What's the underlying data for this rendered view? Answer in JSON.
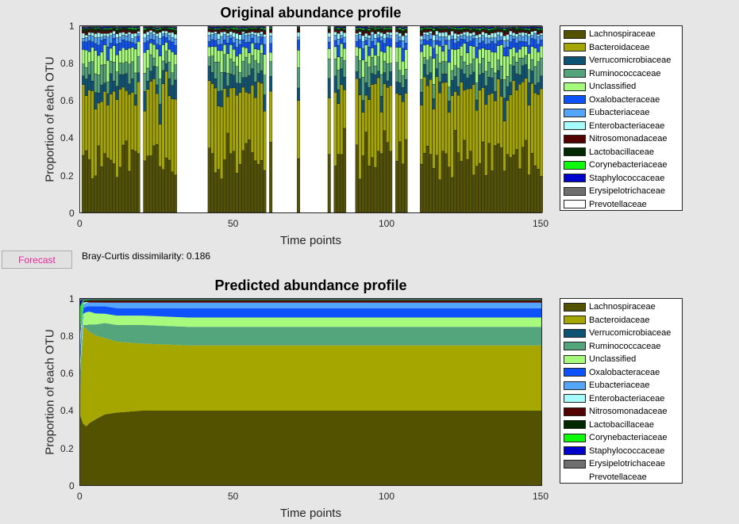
{
  "top_chart": {
    "title": "Original abundance profile",
    "ylabel": "Proportion of each OTU",
    "xlabel": "Time points",
    "xticks": [
      "0",
      "50",
      "100",
      "150"
    ],
    "yticks": [
      "0",
      "0.2",
      "0.4",
      "0.6",
      "0.8",
      "1"
    ]
  },
  "bottom_chart": {
    "title": "Predicted abundance profile",
    "ylabel": "Proportion of each OTU",
    "xlabel": "Time points",
    "xticks": [
      "0",
      "50",
      "100",
      "150"
    ],
    "yticks": [
      "0",
      "0.2",
      "0.4",
      "0.6",
      "0.8",
      "1"
    ]
  },
  "legend": [
    {
      "label": "Lachnospiraceae",
      "color": "#535200"
    },
    {
      "label": "Bacteroidaceae",
      "color": "#a6a600"
    },
    {
      "label": "Verrucomicrobiaceae",
      "color": "#0d5474"
    },
    {
      "label": "Ruminococcaceae",
      "color": "#54a47c"
    },
    {
      "label": "Unclassified",
      "color": "#a6fb7c"
    },
    {
      "label": "Oxalobacteraceae",
      "color": "#0d52fb"
    },
    {
      "label": "Eubacteriaceae",
      "color": "#54a6fb"
    },
    {
      "label": "Enterobacteriaceae",
      "color": "#a6fbfb"
    },
    {
      "label": "Nitrosomonadaceae",
      "color": "#540000"
    },
    {
      "label": "Lactobacillaceae",
      "color": "#002900"
    },
    {
      "label": "Corynebacteriaceae",
      "color": "#0cfb0c"
    },
    {
      "label": "Staphylococcaceae",
      "color": "#0000cc"
    },
    {
      "label": "Erysipelotrichaceae",
      "color": "#6e6e6e"
    },
    {
      "label": "Prevotellaceae",
      "color": "#ffffff"
    }
  ],
  "controls": {
    "forecast_label": "Forecast",
    "dissimilarity_text": "Bray-Curtis dissimilarity: 0.186"
  },
  "chart_data": [
    {
      "type": "bar",
      "stacked": true,
      "title": "Original abundance profile",
      "xlabel": "Time points",
      "ylabel": "Proportion of each OTU",
      "xlim": [
        0,
        150
      ],
      "ylim": [
        0,
        1
      ],
      "present_ranges": [
        [
          1,
          19
        ],
        [
          21,
          27
        ],
        [
          27,
          31
        ],
        [
          31,
          31
        ],
        [
          42,
          54
        ],
        [
          54,
          60
        ],
        [
          60,
          60
        ],
        [
          62,
          62
        ],
        [
          71,
          71
        ],
        [
          81,
          81
        ],
        [
          83,
          86
        ],
        [
          90,
          101
        ],
        [
          103,
          106
        ],
        [
          111,
          150
        ]
      ],
      "series_mean": [
        {
          "name": "Lachnospiraceae",
          "value": 0.3
        },
        {
          "name": "Bacteroidaceae",
          "value": 0.35
        },
        {
          "name": "Verrucomicrobiaceae",
          "value": 0.07
        },
        {
          "name": "Ruminococcaceae",
          "value": 0.08
        },
        {
          "name": "Unclassified",
          "value": 0.08
        },
        {
          "name": "Oxalobacteraceae",
          "value": 0.04
        },
        {
          "name": "Eubacteriaceae",
          "value": 0.03
        },
        {
          "name": "Enterobacteriaceae",
          "value": 0.02
        },
        {
          "name": "Nitrosomonadaceae",
          "value": 0.01
        },
        {
          "name": "Lactobacillaceae",
          "value": 0.01
        },
        {
          "name": "Corynebacteriaceae",
          "value": 0.005
        },
        {
          "name": "Staphylococcaceae",
          "value": 0.005
        },
        {
          "name": "Erysipelotrichaceae",
          "value": 0.005
        },
        {
          "name": "Prevotellaceae",
          "value": 0.0
        }
      ]
    },
    {
      "type": "area",
      "stacked": true,
      "title": "Predicted abundance profile",
      "xlabel": "Time points",
      "ylabel": "Proportion of each OTU",
      "xlim": [
        0,
        150
      ],
      "ylim": [
        0,
        1
      ],
      "x": [
        0,
        1,
        2,
        3,
        5,
        8,
        12,
        20,
        35,
        60,
        150
      ],
      "series": [
        {
          "name": "Lachnospiraceae",
          "values": [
            0.37,
            0.33,
            0.32,
            0.34,
            0.36,
            0.38,
            0.39,
            0.4,
            0.4,
            0.4,
            0.4
          ]
        },
        {
          "name": "Bacteroidaceae",
          "values": [
            0.12,
            0.52,
            0.53,
            0.5,
            0.46,
            0.41,
            0.38,
            0.36,
            0.35,
            0.35,
            0.35
          ]
        },
        {
          "name": "Verrucomicrobiaceae",
          "values": [
            0.02,
            0.0,
            0.0,
            0.0,
            0.0,
            0.0,
            0.0,
            0.0,
            0.0,
            0.0,
            0.0
          ]
        },
        {
          "name": "Ruminococcaceae",
          "values": [
            0.1,
            0.01,
            0.02,
            0.04,
            0.06,
            0.08,
            0.09,
            0.1,
            0.1,
            0.1,
            0.1
          ]
        },
        {
          "name": "Unclassified",
          "values": [
            0.05,
            0.06,
            0.07,
            0.07,
            0.06,
            0.05,
            0.05,
            0.05,
            0.05,
            0.05,
            0.05
          ]
        },
        {
          "name": "Oxalobacteraceae",
          "values": [
            0.05,
            0.03,
            0.03,
            0.03,
            0.04,
            0.04,
            0.04,
            0.04,
            0.05,
            0.05,
            0.05
          ]
        },
        {
          "name": "Eubacteriaceae",
          "values": [
            0.04,
            0.02,
            0.02,
            0.02,
            0.02,
            0.02,
            0.03,
            0.03,
            0.03,
            0.03,
            0.03
          ]
        },
        {
          "name": "Enterobacteriaceae",
          "values": [
            0.05,
            0.01,
            0.005,
            0.0,
            0.0,
            0.0,
            0.0,
            0.0,
            0.0,
            0.0,
            0.0
          ]
        },
        {
          "name": "Nitrosomonadaceae",
          "values": [
            0.01,
            0.005,
            0.005,
            0.01,
            0.01,
            0.01,
            0.01,
            0.01,
            0.01,
            0.01,
            0.01
          ]
        },
        {
          "name": "Lactobacillaceae",
          "values": [
            0.02,
            0.005,
            0.005,
            0.005,
            0.005,
            0.005,
            0.005,
            0.005,
            0.005,
            0.005,
            0.005
          ]
        },
        {
          "name": "Corynebacteriaceae",
          "values": [
            0.12,
            0.005,
            0.003,
            0.002,
            0.002,
            0.002,
            0.002,
            0.002,
            0.002,
            0.002,
            0.002
          ]
        },
        {
          "name": "Staphylococcaceae",
          "values": [
            0.03,
            0.003,
            0.002,
            0.001,
            0.001,
            0.001,
            0.001,
            0.001,
            0.001,
            0.001,
            0.001
          ]
        },
        {
          "name": "Erysipelotrichaceae",
          "values": [
            0.01,
            0.002,
            0.002,
            0.002,
            0.002,
            0.002,
            0.002,
            0.002,
            0.002,
            0.002,
            0.002
          ]
        },
        {
          "name": "Prevotellaceae",
          "values": [
            0.0,
            0.0,
            0.0,
            0.0,
            0.0,
            0.0,
            0.0,
            0.0,
            0.0,
            0.0,
            0.0
          ]
        }
      ]
    }
  ]
}
